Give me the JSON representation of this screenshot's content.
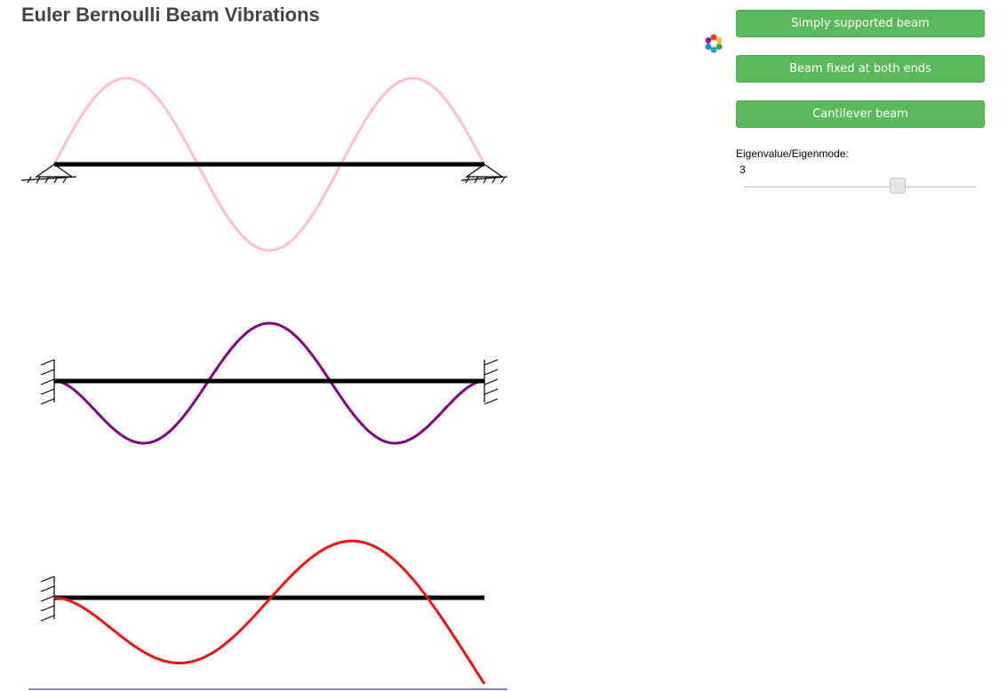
{
  "app": {
    "title": "Euler Bernoulli Beam Vibrations"
  },
  "controls": {
    "buttons": [
      {
        "label": "Simply supported beam"
      },
      {
        "label": "Beam fixed at both ends"
      },
      {
        "label": "Cantilever beam"
      }
    ],
    "slider": {
      "label": "Eigenvalue/Eigenmode:",
      "value": 3,
      "min": 1,
      "max": 4
    }
  },
  "colors": {
    "simply_supported_mode": "#ffc0cb",
    "fixed_fixed_mode": "#800080",
    "cantilever_mode": "#ee1111",
    "beam": "#000000",
    "button": "#5cb85c",
    "bottom_line": "#8c84c8"
  },
  "icons": {
    "logo": "geogebra-flower-icon"
  }
}
